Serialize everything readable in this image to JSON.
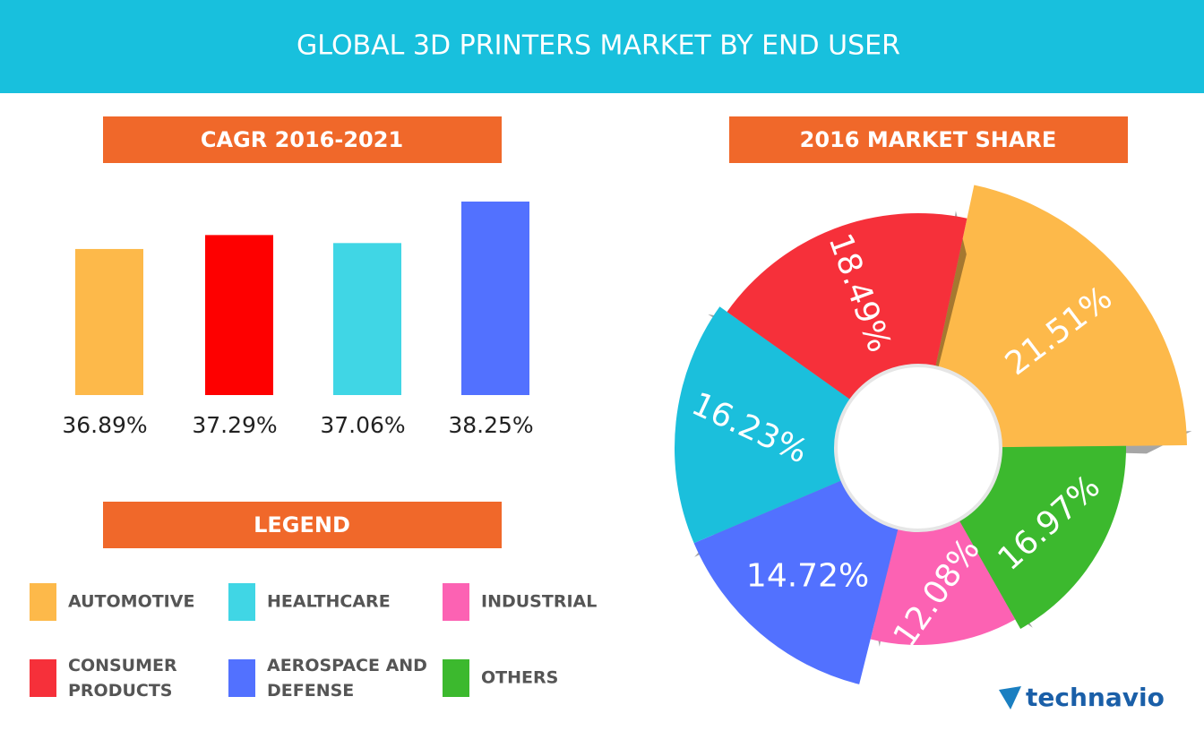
{
  "title": "GLOBAL 3D PRINTERS MARKET BY END USER",
  "chart_data": [
    {
      "type": "bar",
      "title": "CAGR 2016-2021",
      "categories": [
        null,
        null,
        null,
        null
      ],
      "values": [
        36.89,
        37.29,
        37.06,
        38.25
      ],
      "value_labels": [
        "36.89%",
        "37.29%",
        "37.06%",
        "38.25%"
      ],
      "colors": [
        "#fdb94a",
        "#fe0000",
        "#40d6e5",
        "#5271ff"
      ],
      "ylim": [
        32.7,
        38.7
      ]
    },
    {
      "type": "pie",
      "title": "2016 MARKET SHARE",
      "categories": [
        "AUTOMOTIVE",
        "OTHERS",
        "INDUSTRIAL",
        "AEROSPACE AND DEFENSE",
        "HEALTHCARE",
        "CONSUMER PRODUCTS"
      ],
      "values": [
        21.51,
        16.97,
        12.08,
        14.72,
        16.23,
        18.49
      ],
      "value_labels": [
        "21.51%",
        "16.97%",
        "12.08%",
        "14.72%",
        "16.23%",
        "18.49%"
      ],
      "colors": [
        "#fdb94a",
        "#3cb92e",
        "#fc62b3",
        "#5271ff",
        "#1bbfdc",
        "#f6303a"
      ]
    }
  ],
  "legend": {
    "title": "LEGEND",
    "items": [
      {
        "name": "AUTOMOTIVE",
        "color": "#fdb94a"
      },
      {
        "name": "HEALTHCARE",
        "color": "#40d6e5"
      },
      {
        "name": "INDUSTRIAL",
        "color": "#fc62b3"
      },
      {
        "name": "CONSUMER PRODUCTS",
        "color": "#f6303a"
      },
      {
        "name": "AEROSPACE AND DEFENSE",
        "color": "#5271ff"
      },
      {
        "name": "OTHERS",
        "color": "#3cb92e"
      }
    ]
  },
  "logo": "technavio"
}
